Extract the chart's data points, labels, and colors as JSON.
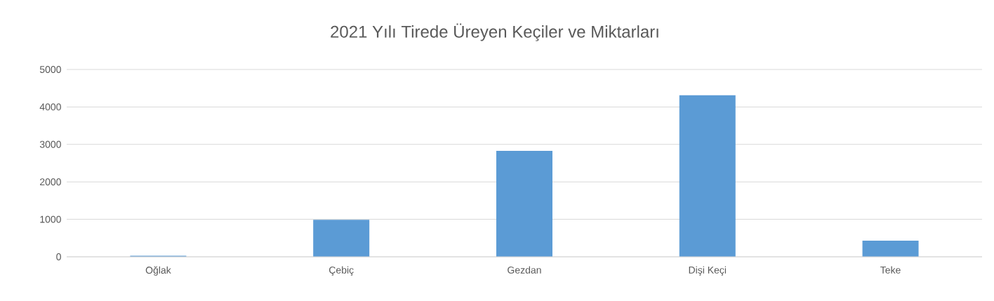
{
  "chart_data": {
    "type": "bar",
    "title": "2021 Yılı Tirede Üreyen  Keçiler  ve Miktarları",
    "categories": [
      "Oğlak",
      "Çebiç",
      "Gezdan",
      "Dişi Keçi",
      "Teke"
    ],
    "values": [
      30,
      990,
      2830,
      4310,
      430
    ],
    "color": "#5b9bd5",
    "ylim": [
      0,
      5000
    ],
    "yticks": [
      0,
      1000,
      2000,
      3000,
      4000,
      5000
    ],
    "grid": "y"
  }
}
